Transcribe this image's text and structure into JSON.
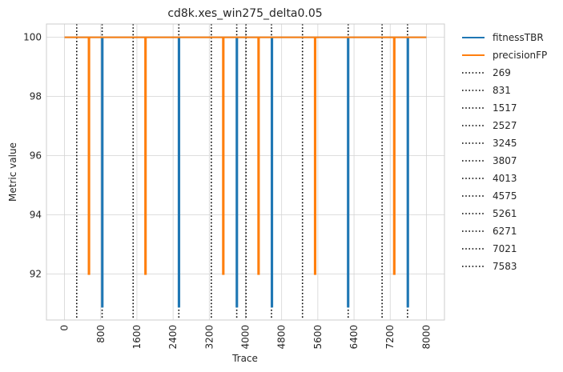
{
  "chart_data": {
    "type": "line",
    "title": "cd8k.xes_win275_delta0.05",
    "xlabel": "Trace",
    "ylabel": "Metric value",
    "xlim": [
      -400,
      8400
    ],
    "ylim": [
      90.45,
      100.45
    ],
    "xticks": [
      0,
      800,
      1600,
      2400,
      3200,
      4000,
      4800,
      5600,
      6400,
      7200,
      8000
    ],
    "yticks": [
      92,
      94,
      96,
      98,
      100
    ],
    "grid": true,
    "legend_position": "outside-right",
    "series": [
      {
        "name": "fitnessTBR",
        "color": "#1f77b4",
        "dips": [
          {
            "x": 825,
            "min": 90.9
          },
          {
            "x": 2520,
            "min": 90.9
          },
          {
            "x": 3800,
            "min": 90.9
          },
          {
            "x": 4575,
            "min": 90.9
          },
          {
            "x": 6260,
            "min": 90.9
          },
          {
            "x": 7580,
            "min": 90.9
          }
        ],
        "baseline": 100
      },
      {
        "name": "precisionFP",
        "color": "#ff7f0e",
        "dips": [
          {
            "x": 530,
            "min": 92
          },
          {
            "x": 1780,
            "min": 92
          },
          {
            "x": 3500,
            "min": 92
          },
          {
            "x": 4280,
            "min": 92
          },
          {
            "x": 5530,
            "min": 92
          },
          {
            "x": 7280,
            "min": 92
          }
        ],
        "baseline": 100
      }
    ],
    "vlines": {
      "style": "dotted",
      "color": "#000000",
      "values": [
        269,
        831,
        1517,
        2527,
        3245,
        3807,
        4013,
        4575,
        5261,
        6271,
        7021,
        7583
      ],
      "labels": [
        "269",
        "831",
        "1517",
        "2527",
        "3245",
        "3807",
        "4013",
        "4575",
        "5261",
        "6271",
        "7021",
        "7583"
      ]
    },
    "x_range": [
      0,
      8000
    ]
  }
}
